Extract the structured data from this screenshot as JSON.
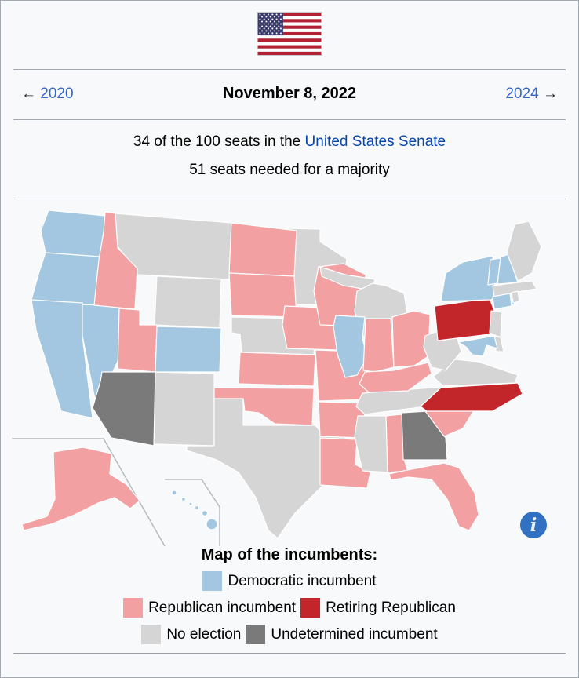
{
  "header": {
    "flag": "us-flag",
    "prev_arrow": "←",
    "prev_label": "2020",
    "date": "November 8, 2022",
    "next_label": "2024",
    "next_arrow": "→"
  },
  "summary": {
    "line1_prefix": "34 of the 100 seats in the ",
    "line1_link": "United States Senate",
    "line2": "51 seats needed for a majority"
  },
  "map": {
    "title": "Map of the incumbents:",
    "info_icon_glyph": "i",
    "legend": [
      {
        "id": "dem",
        "label": "Democratic incumbent",
        "color": "#a3c7e0"
      },
      {
        "id": "rep",
        "label": "Republican incumbent",
        "color": "#f2a0a2"
      },
      {
        "id": "ret",
        "label": "Retiring Republican",
        "color": "#c2262b"
      },
      {
        "id": "none",
        "label": "No election",
        "color": "#d5d5d5"
      },
      {
        "id": "und",
        "label": "Undetermined incumbent",
        "color": "#7a7a7a"
      }
    ],
    "state_categories": {
      "WA": "dem",
      "OR": "dem",
      "CA": "dem",
      "NV": "dem",
      "CO": "dem",
      "IL": "dem",
      "NY": "dem",
      "VT": "dem",
      "NH": "dem",
      "CT": "dem",
      "MD": "dem",
      "HI": "dem",
      "ID": "rep",
      "UT": "rep",
      "ND": "rep",
      "SD": "rep",
      "KS": "rep",
      "OK": "rep",
      "IA": "rep",
      "MO": "rep",
      "AR": "rep",
      "LA": "rep",
      "WI": "rep",
      "IN": "rep",
      "OH": "rep",
      "KY": "rep",
      "AL": "rep",
      "SC": "rep",
      "FL": "rep",
      "AK": "rep",
      "PA": "ret",
      "NC": "ret",
      "AZ": "und",
      "GA": "und",
      "MT": "none",
      "WY": "none",
      "NM": "none",
      "TX": "none",
      "NE": "none",
      "MN": "none",
      "MI": "none",
      "ME": "none",
      "MA": "none",
      "RI": "none",
      "NJ": "none",
      "DE": "none",
      "VA": "none",
      "WV": "none",
      "TN": "none",
      "MS": "none"
    }
  },
  "colors": {
    "link": "#3366cc",
    "article_link": "#0645ad",
    "border": "#a2a9b1",
    "background": "#f8f9fa",
    "flag_red": "#b22234",
    "flag_blue": "#3c3b6e",
    "info_icon_blue": "#3270c2"
  }
}
